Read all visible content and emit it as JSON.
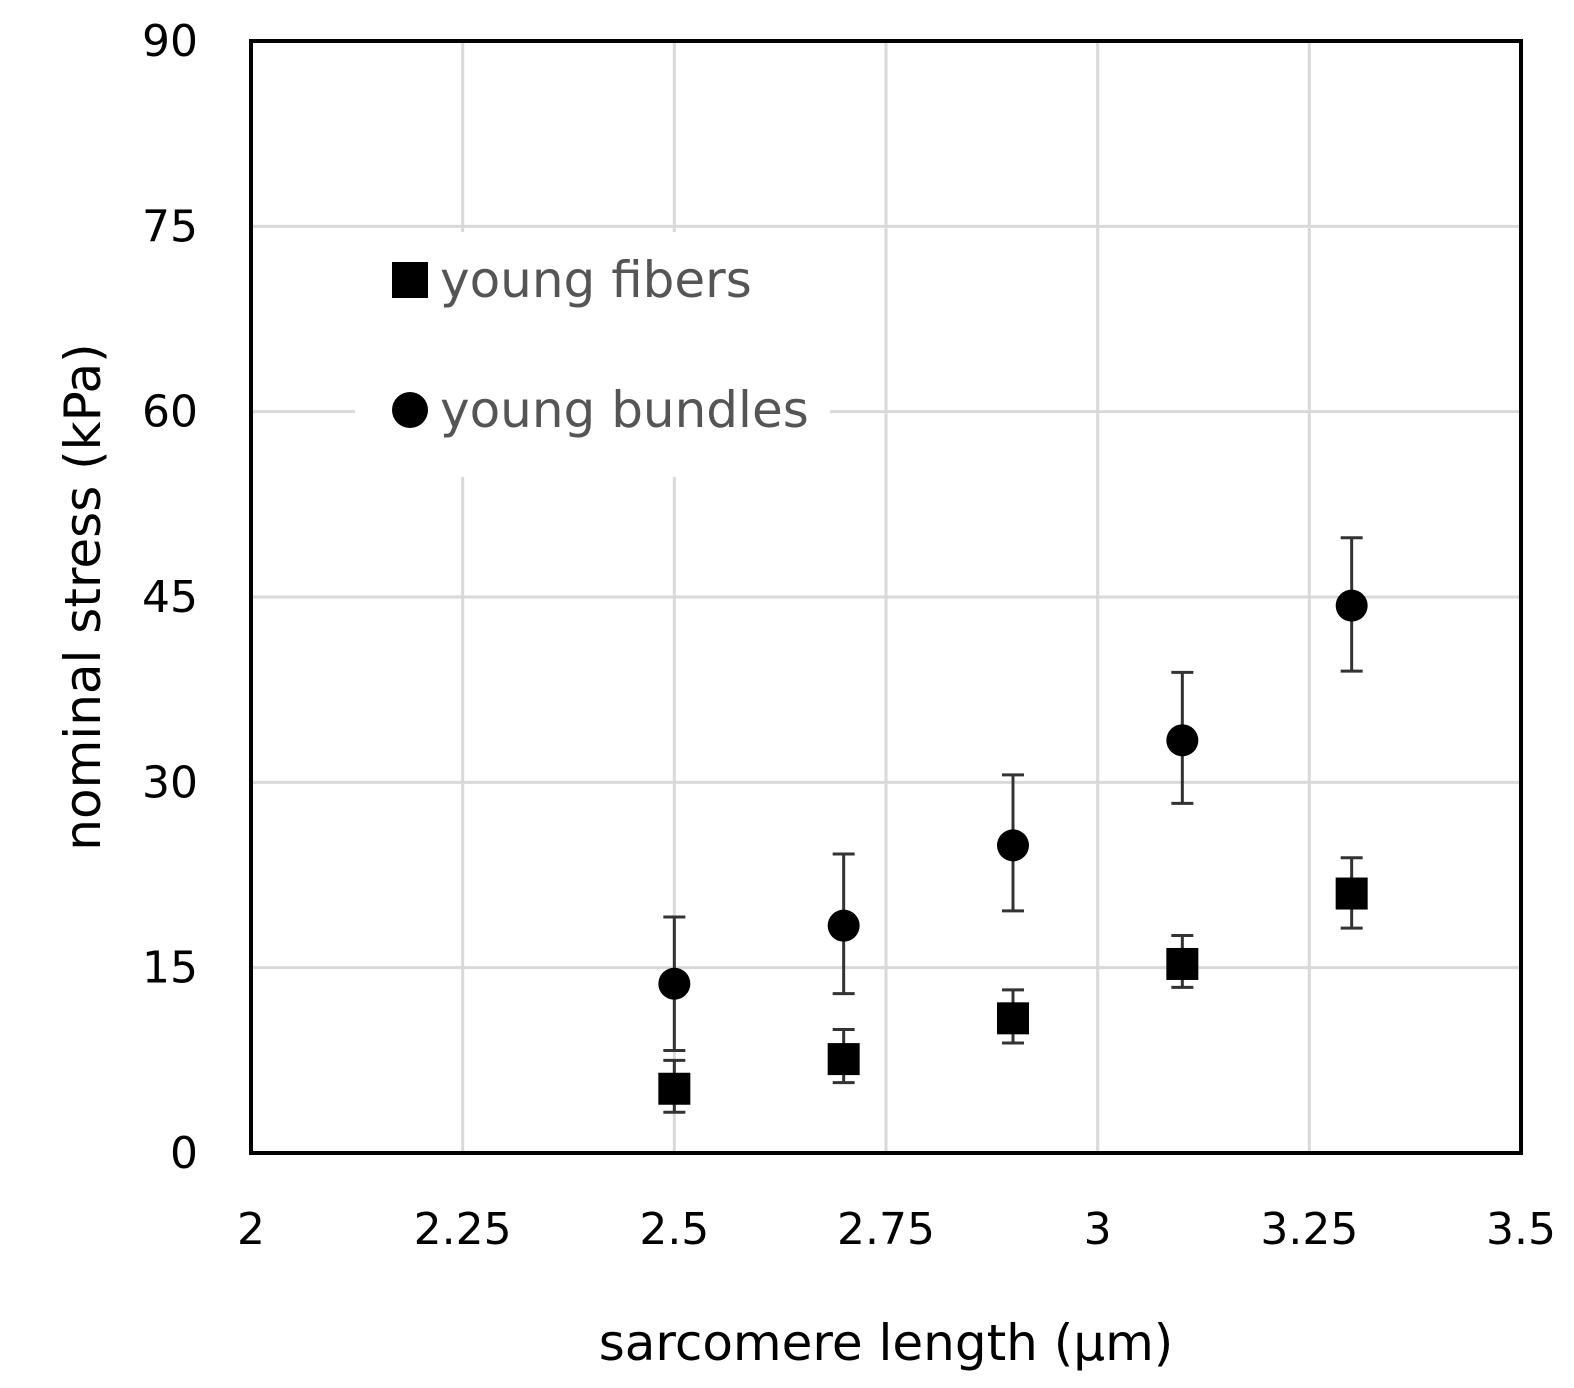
{
  "chart_data": {
    "type": "scatter",
    "xlabel": "sarcomere length (µm)",
    "ylabel": "nominal stress (kPa)",
    "xlim": [
      2,
      3.5
    ],
    "ylim": [
      0,
      90
    ],
    "x_ticks": [
      "2",
      "2.25",
      "2.5",
      "2.75",
      "3",
      "3.25",
      "3.5"
    ],
    "y_ticks": [
      "0",
      "15",
      "30",
      "45",
      "60",
      "75",
      "90"
    ],
    "grid": true,
    "legend_position": "top-left",
    "series": [
      {
        "name": "young fibers",
        "marker": "square",
        "color": "#000000",
        "points": [
          {
            "x": 2.5,
            "y": 5.2,
            "err_low": 3.3,
            "err_high": 7.5
          },
          {
            "x": 2.7,
            "y": 7.6,
            "err_low": 5.7,
            "err_high": 10.0
          },
          {
            "x": 2.9,
            "y": 10.9,
            "err_low": 8.9,
            "err_high": 13.2
          },
          {
            "x": 3.1,
            "y": 15.3,
            "err_low": 13.4,
            "err_high": 17.6
          },
          {
            "x": 3.3,
            "y": 21.0,
            "err_low": 18.2,
            "err_high": 23.9
          }
        ]
      },
      {
        "name": "young bundles",
        "marker": "circle",
        "color": "#000000",
        "points": [
          {
            "x": 2.5,
            "y": 13.7,
            "err_low": 8.3,
            "err_high": 19.1
          },
          {
            "x": 2.7,
            "y": 18.4,
            "err_low": 12.9,
            "err_high": 24.2
          },
          {
            "x": 2.9,
            "y": 24.9,
            "err_low": 19.6,
            "err_high": 30.6
          },
          {
            "x": 3.1,
            "y": 33.4,
            "err_low": 28.3,
            "err_high": 38.9
          },
          {
            "x": 3.3,
            "y": 44.3,
            "err_low": 39.0,
            "err_high": 49.8
          }
        ]
      }
    ]
  }
}
